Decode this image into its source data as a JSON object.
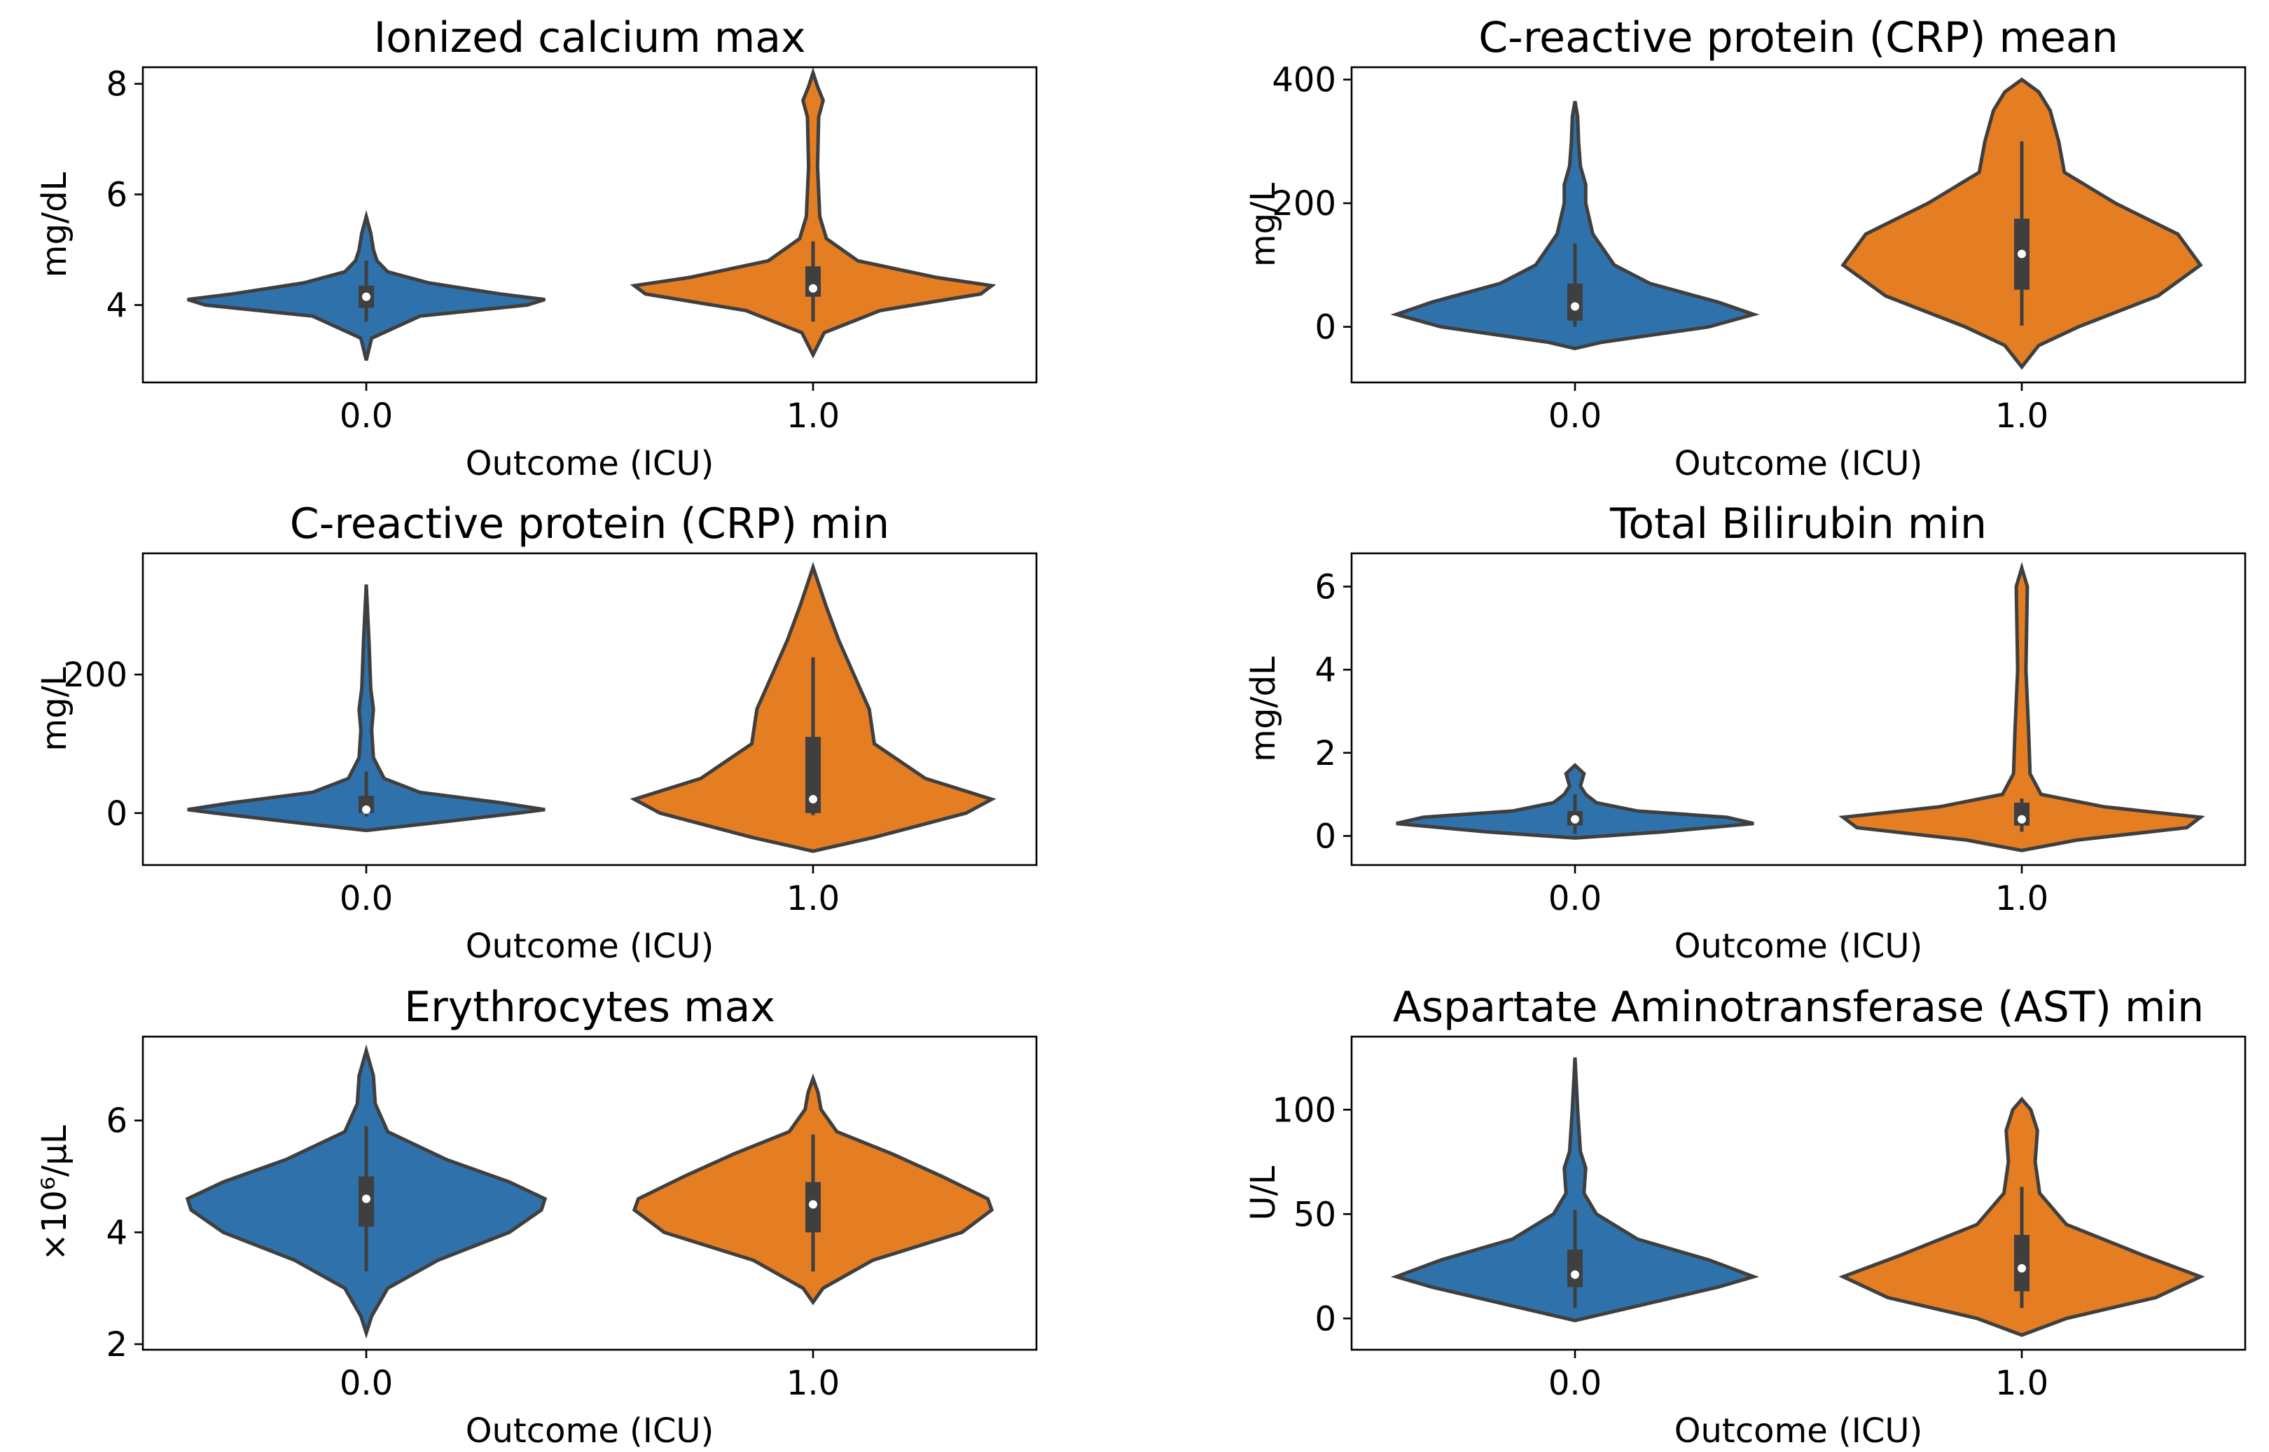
{
  "colors": {
    "outcome_0": "#2f72ab",
    "outcome_1": "#e57d22"
  },
  "chart_data": [
    {
      "type": "violin",
      "title": "Ionized calcium  max",
      "xlabel": "Outcome (ICU)",
      "ylabel": "mg/dL",
      "categories": [
        "0.0",
        "1.0"
      ],
      "ylim": [
        2.6,
        8.3
      ],
      "yticks": [
        4,
        6,
        8
      ],
      "series": [
        {
          "name": "0.0",
          "min": 3.0,
          "q1": 3.95,
          "median": 4.15,
          "q3": 4.35,
          "max": 5.6,
          "whisker_low": 3.7,
          "whisker_high": 4.8,
          "profile": [
            [
              3.0,
              0.0
            ],
            [
              3.4,
              0.03
            ],
            [
              3.8,
              0.3
            ],
            [
              4.0,
              0.9
            ],
            [
              4.1,
              1.0
            ],
            [
              4.2,
              0.75
            ],
            [
              4.4,
              0.35
            ],
            [
              4.6,
              0.12
            ],
            [
              4.8,
              0.06
            ],
            [
              5.0,
              0.04
            ],
            [
              5.3,
              0.025
            ],
            [
              5.6,
              0.0
            ]
          ]
        },
        {
          "name": "1.0",
          "min": 3.1,
          "q1": 4.15,
          "median": 4.3,
          "q3": 4.7,
          "max": 8.2,
          "whisker_low": 3.7,
          "whisker_high": 5.15,
          "profile": [
            [
              3.1,
              0.0
            ],
            [
              3.5,
              0.05
            ],
            [
              3.9,
              0.3
            ],
            [
              4.2,
              0.75
            ],
            [
              4.35,
              0.8
            ],
            [
              4.5,
              0.55
            ],
            [
              4.8,
              0.2
            ],
            [
              5.2,
              0.06
            ],
            [
              5.6,
              0.03
            ],
            [
              6.5,
              0.02
            ],
            [
              7.4,
              0.025
            ],
            [
              7.7,
              0.045
            ],
            [
              7.95,
              0.02
            ],
            [
              8.2,
              0.0
            ]
          ]
        }
      ]
    },
    {
      "type": "violin",
      "title": "C-reactive protein (CRP)  mean",
      "xlabel": "Outcome (ICU)",
      "ylabel": "mg/L",
      "categories": [
        "0.0",
        "1.0"
      ],
      "ylim": [
        -90,
        420
      ],
      "yticks": [
        0,
        200,
        400
      ],
      "series": [
        {
          "name": "0.0",
          "min": -35,
          "q1": 10,
          "median": 33,
          "q3": 70,
          "max": 365,
          "whisker_low": 0,
          "whisker_high": 135,
          "profile": [
            [
              -35,
              0.0
            ],
            [
              -25,
              0.15
            ],
            [
              0,
              0.75
            ],
            [
              20,
              1.0
            ],
            [
              40,
              0.8
            ],
            [
              70,
              0.42
            ],
            [
              100,
              0.22
            ],
            [
              150,
              0.1
            ],
            [
              200,
              0.06
            ],
            [
              230,
              0.06
            ],
            [
              260,
              0.03
            ],
            [
              300,
              0.02
            ],
            [
              340,
              0.015
            ],
            [
              365,
              0.0
            ]
          ]
        },
        {
          "name": "1.0",
          "min": -65,
          "q1": 60,
          "median": 118,
          "q3": 175,
          "max": 400,
          "whisker_low": 2,
          "whisker_high": 300,
          "profile": [
            [
              -65,
              0.0
            ],
            [
              -30,
              0.06
            ],
            [
              0,
              0.2
            ],
            [
              50,
              0.48
            ],
            [
              100,
              0.63
            ],
            [
              150,
              0.55
            ],
            [
              200,
              0.33
            ],
            [
              250,
              0.15
            ],
            [
              300,
              0.13
            ],
            [
              350,
              0.1
            ],
            [
              380,
              0.06
            ],
            [
              400,
              0.0
            ]
          ]
        }
      ]
    },
    {
      "type": "violin",
      "title": "C-reactive protein (CRP)  min",
      "xlabel": "Outcome (ICU)",
      "ylabel": "mg/L",
      "categories": [
        "0.0",
        "1.0"
      ],
      "ylim": [
        -75,
        375
      ],
      "yticks": [
        0,
        200
      ],
      "series": [
        {
          "name": "0.0",
          "min": -25,
          "q1": 0,
          "median": 5,
          "q3": 25,
          "max": 330,
          "whisker_low": -5,
          "whisker_high": 60,
          "profile": [
            [
              -25,
              0.0
            ],
            [
              -15,
              0.35
            ],
            [
              0,
              0.85
            ],
            [
              5,
              1.0
            ],
            [
              15,
              0.75
            ],
            [
              30,
              0.3
            ],
            [
              50,
              0.1
            ],
            [
              80,
              0.04
            ],
            [
              120,
              0.03
            ],
            [
              150,
              0.04
            ],
            [
              180,
              0.025
            ],
            [
              250,
              0.015
            ],
            [
              330,
              0.0
            ]
          ]
        },
        {
          "name": "1.0",
          "min": -55,
          "q1": 0,
          "median": 20,
          "q3": 110,
          "max": 355,
          "whisker_low": -3,
          "whisker_high": 225,
          "profile": [
            [
              -55,
              0.0
            ],
            [
              -35,
              0.12
            ],
            [
              0,
              0.3
            ],
            [
              20,
              0.35
            ],
            [
              50,
              0.22
            ],
            [
              100,
              0.12
            ],
            [
              150,
              0.11
            ],
            [
              200,
              0.08
            ],
            [
              250,
              0.05
            ],
            [
              300,
              0.025
            ],
            [
              355,
              0.0
            ]
          ]
        }
      ]
    },
    {
      "type": "violin",
      "title": "Total Bilirubin  min",
      "xlabel": "Outcome (ICU)",
      "ylabel": "mg/dL",
      "categories": [
        "0.0",
        "1.0"
      ],
      "ylim": [
        -0.7,
        6.8
      ],
      "yticks": [
        0,
        2,
        4,
        6
      ],
      "series": [
        {
          "name": "0.0",
          "min": -0.05,
          "q1": 0.25,
          "median": 0.4,
          "q3": 0.6,
          "max": 1.7,
          "whisker_low": 0.05,
          "whisker_high": 1.0,
          "profile": [
            [
              -0.05,
              0.0
            ],
            [
              0.1,
              0.5
            ],
            [
              0.3,
              1.0
            ],
            [
              0.45,
              0.85
            ],
            [
              0.6,
              0.35
            ],
            [
              0.8,
              0.12
            ],
            [
              1.0,
              0.06
            ],
            [
              1.2,
              0.03
            ],
            [
              1.5,
              0.05
            ],
            [
              1.7,
              0.0
            ]
          ]
        },
        {
          "name": "1.0",
          "min": -0.35,
          "q1": 0.25,
          "median": 0.4,
          "q3": 0.8,
          "max": 6.45,
          "whisker_low": 0.1,
          "whisker_high": 0.9,
          "profile": [
            [
              -0.35,
              0.0
            ],
            [
              -0.1,
              0.2
            ],
            [
              0.2,
              0.6
            ],
            [
              0.45,
              0.65
            ],
            [
              0.7,
              0.3
            ],
            [
              1.0,
              0.07
            ],
            [
              1.5,
              0.03
            ],
            [
              2.5,
              0.025
            ],
            [
              4.0,
              0.015
            ],
            [
              6.0,
              0.02
            ],
            [
              6.45,
              0.0
            ]
          ]
        }
      ]
    },
    {
      "type": "violin",
      "title": "Erythrocytes  max",
      "xlabel": "Outcome (ICU)",
      "ylabel": "×10⁶/µL",
      "categories": [
        "0.0",
        "1.0"
      ],
      "ylim": [
        1.9,
        7.5
      ],
      "yticks": [
        2,
        4,
        6
      ],
      "series": [
        {
          "name": "0.0",
          "min": 2.2,
          "q1": 4.1,
          "median": 4.6,
          "q3": 5.0,
          "max": 7.25,
          "whisker_low": 3.3,
          "whisker_high": 5.9,
          "profile": [
            [
              2.2,
              0.0
            ],
            [
              2.5,
              0.03
            ],
            [
              3.0,
              0.12
            ],
            [
              3.5,
              0.4
            ],
            [
              4.0,
              0.8
            ],
            [
              4.4,
              0.98
            ],
            [
              4.6,
              1.0
            ],
            [
              4.9,
              0.8
            ],
            [
              5.3,
              0.45
            ],
            [
              5.8,
              0.12
            ],
            [
              6.3,
              0.05
            ],
            [
              6.8,
              0.04
            ],
            [
              7.25,
              0.0
            ]
          ]
        },
        {
          "name": "1.0",
          "min": 2.75,
          "q1": 4.0,
          "median": 4.5,
          "q3": 4.9,
          "max": 6.75,
          "whisker_low": 3.3,
          "whisker_high": 5.75,
          "profile": [
            [
              2.75,
              0.0
            ],
            [
              3.0,
              0.05
            ],
            [
              3.5,
              0.3
            ],
            [
              4.0,
              0.75
            ],
            [
              4.4,
              0.9
            ],
            [
              4.6,
              0.88
            ],
            [
              5.0,
              0.65
            ],
            [
              5.4,
              0.4
            ],
            [
              5.8,
              0.12
            ],
            [
              6.2,
              0.04
            ],
            [
              6.5,
              0.025
            ],
            [
              6.75,
              0.0
            ]
          ]
        }
      ]
    },
    {
      "type": "violin",
      "title": "Aspartate  Aminotransferase  (AST)  min",
      "xlabel": "Outcome (ICU)",
      "ylabel": "U/L",
      "categories": [
        "0.0",
        "1.0"
      ],
      "ylim": [
        -15,
        135
      ],
      "yticks": [
        0,
        50,
        100
      ],
      "series": [
        {
          "name": "0.0",
          "min": -1,
          "q1": 15,
          "median": 21,
          "q3": 33,
          "max": 125,
          "whisker_low": 5,
          "whisker_high": 52,
          "profile": [
            [
              -1,
              0.0
            ],
            [
              5,
              0.3
            ],
            [
              15,
              0.8
            ],
            [
              20,
              1.0
            ],
            [
              28,
              0.75
            ],
            [
              38,
              0.35
            ],
            [
              50,
              0.12
            ],
            [
              60,
              0.05
            ],
            [
              72,
              0.06
            ],
            [
              80,
              0.03
            ],
            [
              100,
              0.015
            ],
            [
              125,
              0.0
            ]
          ]
        },
        {
          "name": "1.0",
          "min": -8,
          "q1": 13,
          "median": 24,
          "q3": 40,
          "max": 105,
          "whisker_low": 5,
          "whisker_high": 63,
          "profile": [
            [
              -8,
              0.0
            ],
            [
              0,
              0.2
            ],
            [
              10,
              0.6
            ],
            [
              20,
              0.8
            ],
            [
              30,
              0.55
            ],
            [
              45,
              0.2
            ],
            [
              60,
              0.08
            ],
            [
              75,
              0.06
            ],
            [
              90,
              0.07
            ],
            [
              100,
              0.04
            ],
            [
              105,
              0.0
            ]
          ]
        }
      ]
    }
  ]
}
